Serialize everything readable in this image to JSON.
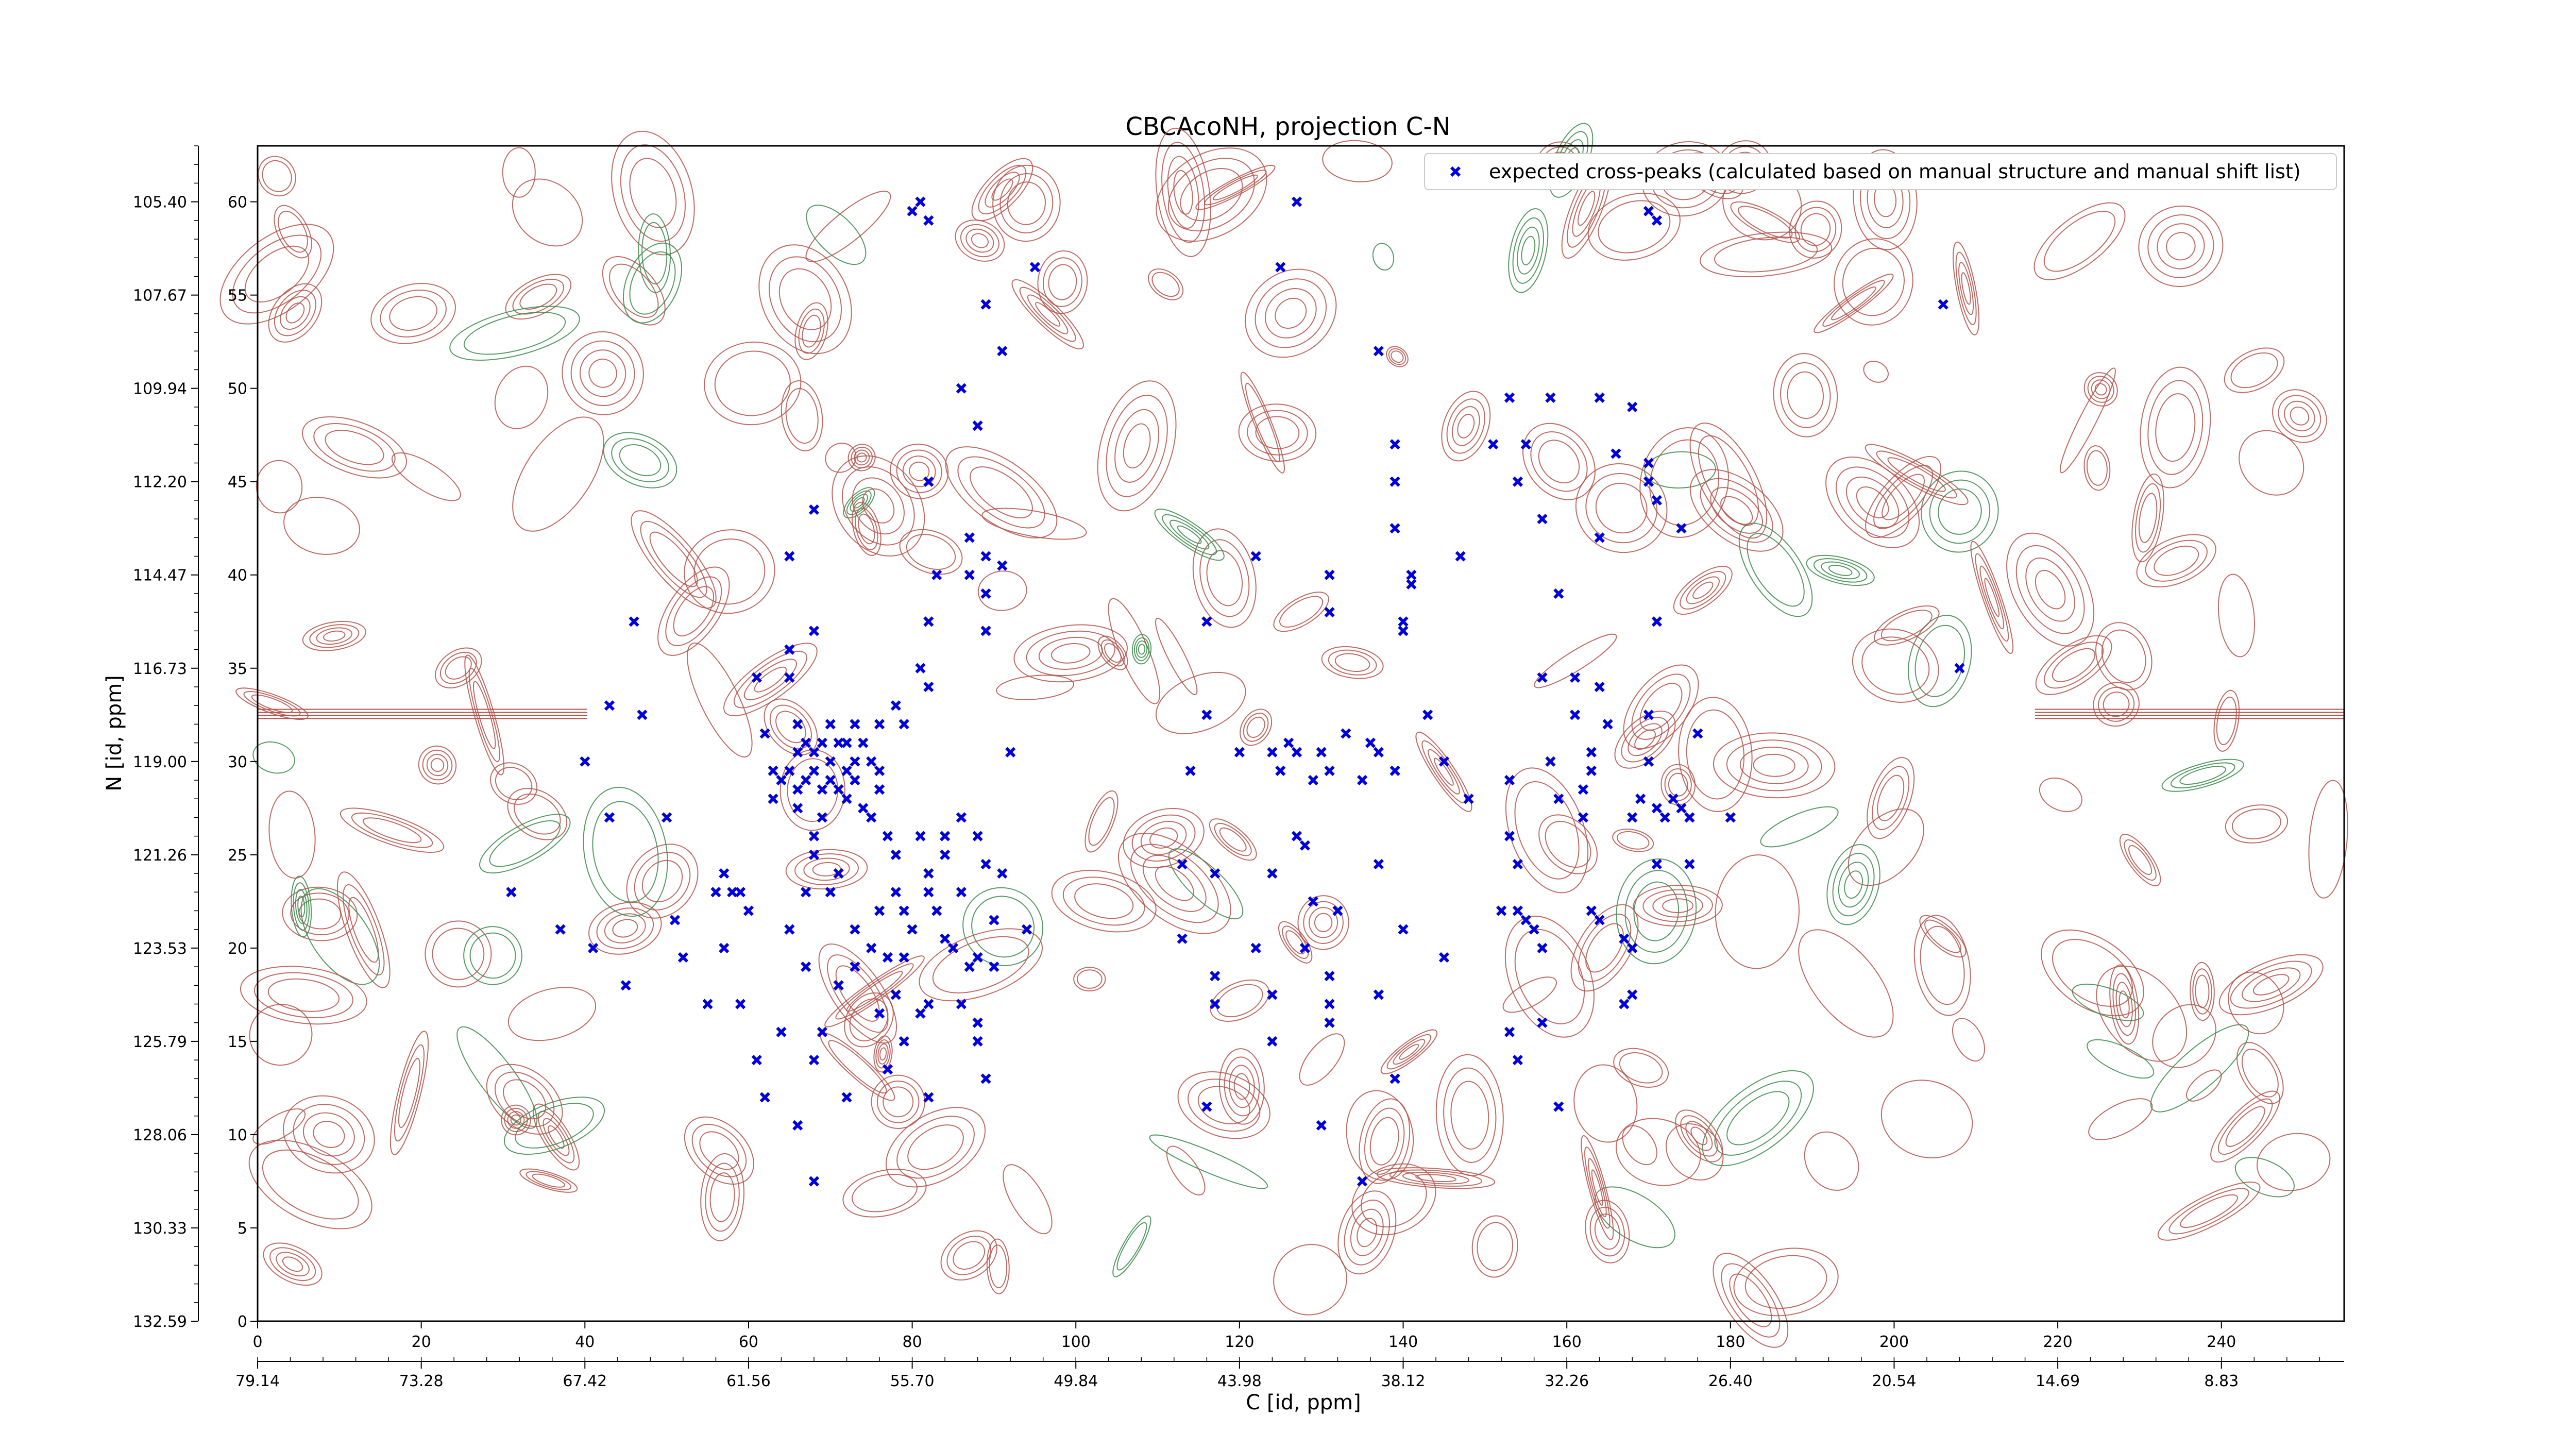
{
  "chart_data": {
    "type": "scatter",
    "title": "CBCAcoNH, projection C-N",
    "xlabel": "C [id, ppm]",
    "ylabel": "N [id, ppm]",
    "x_index_range": [
      0,
      255
    ],
    "y_index_range": [
      0,
      63
    ],
    "x_ticks": [
      "0",
      "20",
      "40",
      "60",
      "80",
      "100",
      "120",
      "140",
      "160",
      "180",
      "200",
      "220",
      "240"
    ],
    "y_ticks": [
      "0",
      "5",
      "10",
      "15",
      "20",
      "25",
      "30",
      "35",
      "40",
      "45",
      "50",
      "55",
      "60"
    ],
    "c_ppm_ticks": [
      "79.14",
      "73.28",
      "67.42",
      "61.56",
      "55.70",
      "49.84",
      "43.98",
      "38.12",
      "32.26",
      "26.40",
      "20.54",
      "14.69",
      "8.83"
    ],
    "n_ppm_ticks": [
      "132.59",
      "130.33",
      "128.06",
      "125.79",
      "123.53",
      "121.26",
      "119.00",
      "116.73",
      "114.47",
      "112.20",
      "109.94",
      "107.67",
      "105.40"
    ],
    "legend_position": "top-right",
    "grid": false,
    "colors": {
      "peaks": "#0000dd",
      "positive_contour": "#b5524a",
      "negative_contour": "#3a8a4a"
    },
    "series": [
      {
        "name": "expected cross-peaks (calculated based on manual structure and manual shift list)",
        "marker": "x",
        "points": [
          [
            81,
            60
          ],
          [
            80,
            59.5
          ],
          [
            82,
            59
          ],
          [
            127,
            60
          ],
          [
            170,
            59.5
          ],
          [
            171,
            59
          ],
          [
            95,
            56.5
          ],
          [
            125,
            56.5
          ],
          [
            206,
            54.5
          ],
          [
            89,
            54.5
          ],
          [
            91,
            52
          ],
          [
            137,
            52
          ],
          [
            86,
            50
          ],
          [
            88,
            48
          ],
          [
            153,
            49.5
          ],
          [
            158,
            49.5
          ],
          [
            164,
            49.5
          ],
          [
            168,
            49
          ],
          [
            139,
            47
          ],
          [
            151,
            47
          ],
          [
            155,
            47
          ],
          [
            166,
            46.5
          ],
          [
            170,
            46
          ],
          [
            82,
            45
          ],
          [
            139,
            45
          ],
          [
            154,
            45
          ],
          [
            170,
            45
          ],
          [
            171,
            44
          ],
          [
            68,
            43.5
          ],
          [
            157,
            43
          ],
          [
            139,
            42.5
          ],
          [
            174,
            42.5
          ],
          [
            87,
            42
          ],
          [
            89,
            41
          ],
          [
            164,
            42
          ],
          [
            147,
            41
          ],
          [
            65,
            41
          ],
          [
            122,
            41
          ],
          [
            91,
            40.5
          ],
          [
            141,
            40
          ],
          [
            83,
            40
          ],
          [
            87,
            40
          ],
          [
            131,
            40
          ],
          [
            89,
            39
          ],
          [
            141,
            39.5
          ],
          [
            159,
            39
          ],
          [
            131,
            38
          ],
          [
            46,
            37.5
          ],
          [
            82,
            37.5
          ],
          [
            89,
            37
          ],
          [
            116,
            37.5
          ],
          [
            140,
            37.5
          ],
          [
            68,
            37
          ],
          [
            140,
            37
          ],
          [
            171,
            37.5
          ],
          [
            65,
            36
          ],
          [
            81,
            35
          ],
          [
            208,
            35
          ],
          [
            61,
            34.5
          ],
          [
            65,
            34.5
          ],
          [
            157,
            34.5
          ],
          [
            161,
            34.5
          ],
          [
            164,
            34
          ],
          [
            82,
            34
          ],
          [
            43,
            33
          ],
          [
            78,
            33
          ],
          [
            116,
            32.5
          ],
          [
            170,
            32.5
          ],
          [
            165,
            32
          ],
          [
            47,
            32.5
          ],
          [
            66,
            32
          ],
          [
            70,
            32
          ],
          [
            73,
            32
          ],
          [
            76,
            32
          ],
          [
            79,
            32
          ],
          [
            143,
            32.5
          ],
          [
            161,
            32.5
          ],
          [
            62,
            31.5
          ],
          [
            67,
            31
          ],
          [
            69,
            31
          ],
          [
            71,
            31
          ],
          [
            72,
            31
          ],
          [
            74,
            31
          ],
          [
            126,
            31
          ],
          [
            133,
            31.5
          ],
          [
            136,
            31
          ],
          [
            66,
            30.5
          ],
          [
            68,
            30.5
          ],
          [
            70,
            30
          ],
          [
            73,
            30
          ],
          [
            75,
            30
          ],
          [
            120,
            30.5
          ],
          [
            124,
            30.5
          ],
          [
            127,
            30.5
          ],
          [
            130,
            30.5
          ],
          [
            137,
            30.5
          ],
          [
            158,
            30
          ],
          [
            163,
            30.5
          ],
          [
            170,
            30
          ],
          [
            176,
            31.5
          ],
          [
            40,
            30
          ],
          [
            63,
            29.5
          ],
          [
            65,
            29.5
          ],
          [
            68,
            29.5
          ],
          [
            72,
            29.5
          ],
          [
            76,
            29.5
          ],
          [
            92,
            30.5
          ],
          [
            114,
            29.5
          ],
          [
            125,
            29.5
          ],
          [
            131,
            29.5
          ],
          [
            139,
            29.5
          ],
          [
            145,
            30
          ],
          [
            163,
            29.5
          ],
          [
            64,
            29
          ],
          [
            67,
            29
          ],
          [
            70,
            29
          ],
          [
            73,
            29
          ],
          [
            129,
            29
          ],
          [
            135,
            29
          ],
          [
            153,
            29
          ],
          [
            162,
            28.5
          ],
          [
            66,
            28.5
          ],
          [
            69,
            28.5
          ],
          [
            71,
            28.5
          ],
          [
            76,
            28.5
          ],
          [
            159,
            28
          ],
          [
            169,
            28
          ],
          [
            173,
            28
          ],
          [
            63,
            28
          ],
          [
            66,
            27.5
          ],
          [
            74,
            27.5
          ],
          [
            72,
            28
          ],
          [
            148,
            28
          ],
          [
            168,
            27
          ],
          [
            171,
            27.5
          ],
          [
            175,
            27
          ],
          [
            180,
            27
          ],
          [
            43,
            27
          ],
          [
            50,
            27
          ],
          [
            69,
            27
          ],
          [
            75,
            27
          ],
          [
            86,
            27
          ],
          [
            162,
            27
          ],
          [
            172,
            27
          ],
          [
            174,
            27.5
          ],
          [
            68,
            26
          ],
          [
            77,
            26
          ],
          [
            81,
            26
          ],
          [
            84,
            26
          ],
          [
            88,
            26
          ],
          [
            127,
            26
          ],
          [
            128,
            25.5
          ],
          [
            153,
            26
          ],
          [
            68,
            25
          ],
          [
            78,
            25
          ],
          [
            84,
            25
          ],
          [
            89,
            24.5
          ],
          [
            113,
            24.5
          ],
          [
            137,
            24.5
          ],
          [
            154,
            24.5
          ],
          [
            171,
            24.5
          ],
          [
            57,
            24
          ],
          [
            71,
            24
          ],
          [
            82,
            24
          ],
          [
            91,
            24
          ],
          [
            117,
            24
          ],
          [
            124,
            24
          ],
          [
            175,
            24.5
          ],
          [
            31,
            23
          ],
          [
            56,
            23
          ],
          [
            58,
            23
          ],
          [
            59,
            23
          ],
          [
            67,
            23
          ],
          [
            70,
            23
          ],
          [
            78,
            23
          ],
          [
            82,
            23
          ],
          [
            86,
            23
          ],
          [
            129,
            22.5
          ],
          [
            152,
            22
          ],
          [
            60,
            22
          ],
          [
            76,
            22
          ],
          [
            79,
            22
          ],
          [
            83,
            22
          ],
          [
            90,
            21.5
          ],
          [
            132,
            22
          ],
          [
            154,
            22
          ],
          [
            155,
            21.5
          ],
          [
            163,
            22
          ],
          [
            167,
            20.5
          ],
          [
            37,
            21
          ],
          [
            51,
            21.5
          ],
          [
            65,
            21
          ],
          [
            73,
            21
          ],
          [
            80,
            21
          ],
          [
            84,
            20.5
          ],
          [
            94,
            21
          ],
          [
            140,
            21
          ],
          [
            156,
            21
          ],
          [
            164,
            21.5
          ],
          [
            41,
            20
          ],
          [
            57,
            20
          ],
          [
            75,
            20
          ],
          [
            79,
            19.5
          ],
          [
            85,
            20
          ],
          [
            88,
            19.5
          ],
          [
            113,
            20.5
          ],
          [
            122,
            20
          ],
          [
            128,
            20
          ],
          [
            157,
            20
          ],
          [
            168,
            20
          ],
          [
            52,
            19.5
          ],
          [
            67,
            19
          ],
          [
            73,
            19
          ],
          [
            77,
            19.5
          ],
          [
            87,
            19
          ],
          [
            90,
            19
          ],
          [
            117,
            18.5
          ],
          [
            131,
            18.5
          ],
          [
            145,
            19.5
          ],
          [
            45,
            18
          ],
          [
            71,
            18
          ],
          [
            78,
            17.5
          ],
          [
            82,
            17
          ],
          [
            86,
            17
          ],
          [
            117,
            17
          ],
          [
            124,
            17.5
          ],
          [
            131,
            17
          ],
          [
            137,
            17.5
          ],
          [
            167,
            17
          ],
          [
            55,
            17
          ],
          [
            59,
            17
          ],
          [
            76,
            16.5
          ],
          [
            81,
            16.5
          ],
          [
            88,
            16
          ],
          [
            131,
            16
          ],
          [
            157,
            16
          ],
          [
            168,
            17.5
          ],
          [
            64,
            15.5
          ],
          [
            69,
            15.5
          ],
          [
            79,
            15
          ],
          [
            88,
            15
          ],
          [
            124,
            15
          ],
          [
            153,
            15.5
          ],
          [
            154,
            14
          ],
          [
            61,
            14
          ],
          [
            68,
            14
          ],
          [
            77,
            13.5
          ],
          [
            89,
            13
          ],
          [
            139,
            13
          ],
          [
            62,
            12
          ],
          [
            72,
            12
          ],
          [
            82,
            12
          ],
          [
            116,
            11.5
          ],
          [
            159,
            11.5
          ],
          [
            130,
            10.5
          ],
          [
            66,
            10.5
          ],
          [
            135,
            7.5
          ],
          [
            68,
            7.5
          ]
        ]
      }
    ]
  }
}
